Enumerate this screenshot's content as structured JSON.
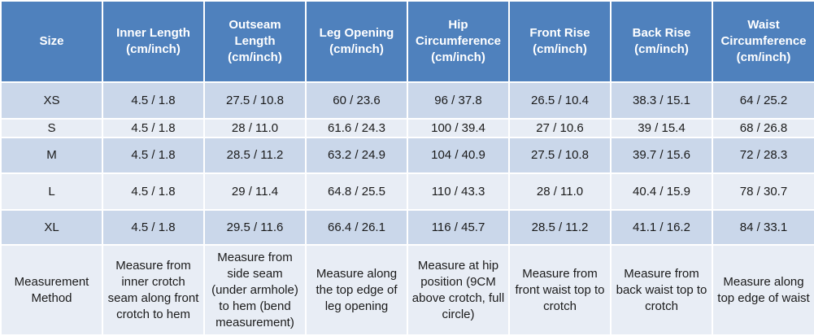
{
  "table": {
    "header": [
      "Size",
      "Inner Length (cm/inch)",
      "Outseam Length (cm/inch)",
      "Leg Opening (cm/inch)",
      "Hip Circumference (cm/inch)",
      "Front Rise (cm/inch)",
      "Back Rise (cm/inch)",
      "Waist Circumference (cm/inch)"
    ],
    "rows": [
      [
        "XS",
        "4.5 / 1.8",
        "27.5 / 10.8",
        "60 / 23.6",
        "96 / 37.8",
        "26.5 / 10.4",
        "38.3 / 15.1",
        "64 / 25.2"
      ],
      [
        "S",
        "4.5 / 1.8",
        "28 / 11.0",
        "61.6 / 24.3",
        "100 / 39.4",
        "27 / 10.6",
        "39 / 15.4",
        "68 / 26.8"
      ],
      [
        "M",
        "4.5 / 1.8",
        "28.5 / 11.2",
        "63.2 / 24.9",
        "104 / 40.9",
        "27.5 / 10.8",
        "39.7 / 15.6",
        "72 / 28.3"
      ],
      [
        "L",
        "4.5 / 1.8",
        "29 / 11.4",
        "64.8 / 25.5",
        "110 / 43.3",
        "28 / 11.0",
        "40.4 / 15.9",
        "78 / 30.7"
      ],
      [
        "XL",
        "4.5 / 1.8",
        "29.5 / 11.6",
        "66.4 / 26.1",
        "116 / 45.7",
        "28.5 / 11.2",
        "41.1 / 16.2",
        "84 / 33.1"
      ],
      [
        "Measurement Method",
        "Measure from inner crotch seam along front crotch to hem",
        "Measure from side seam (under armhole) to hem (bend measurement)",
        "Measure along the top edge of leg opening",
        "Measure at hip position (9CM above crotch, full circle)",
        "Measure from front waist top to crotch",
        "Measure from back waist top to crotch",
        "Measure along top edge of waist"
      ]
    ]
  }
}
